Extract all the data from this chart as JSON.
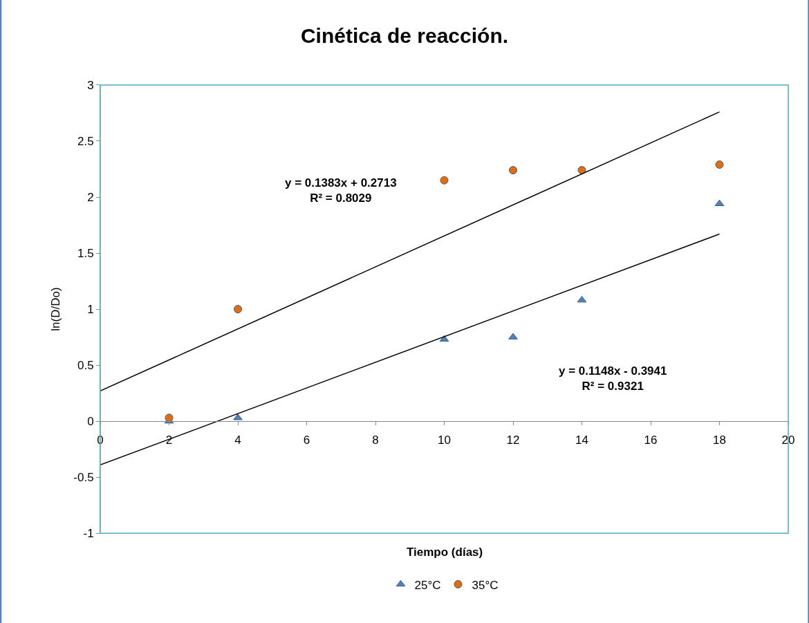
{
  "chart_data": {
    "type": "scatter",
    "title": "Cinética de reacción.",
    "xlabel": "Tiempo (días)",
    "ylabel": "ln(D/Do)",
    "series": [
      {
        "name": "25°C",
        "marker": "triangle",
        "color": "#4f81bd",
        "x": [
          2,
          4,
          10,
          12,
          14,
          18
        ],
        "values": [
          0,
          0.03,
          0.73,
          0.75,
          1.08,
          1.94
        ]
      },
      {
        "name": "35°C",
        "marker": "circle",
        "color": "#e46c0a",
        "x": [
          2,
          4,
          10,
          12,
          14,
          18
        ],
        "values": [
          0.03,
          1.0,
          2.15,
          2.24,
          2.24,
          2.29
        ]
      },
      {
        "type": "line",
        "marker": "none",
        "color": "#000000",
        "x": [
          0,
          18
        ],
        "values": [
          0.27,
          2.76
        ]
      },
      {
        "type": "line",
        "marker": "none",
        "color": "#000000",
        "x": [
          0,
          18
        ],
        "values": [
          -0.39,
          1.67
        ]
      }
    ],
    "annotations": [
      "y = 0.1383x + 0.2713\nR² = 0.8029",
      "y = 0.1148x - 0.3941\nR² = 0.9321"
    ],
    "xlim": [
      0,
      20
    ],
    "xticks": [
      0,
      2,
      4,
      6,
      8,
      10,
      12,
      14,
      16,
      18,
      20
    ],
    "ylim": [
      -1,
      3
    ],
    "yticks": [
      -1,
      -0.5,
      0,
      0.5,
      1,
      1.5,
      2,
      2.5,
      3
    ],
    "legend": "bottom"
  }
}
